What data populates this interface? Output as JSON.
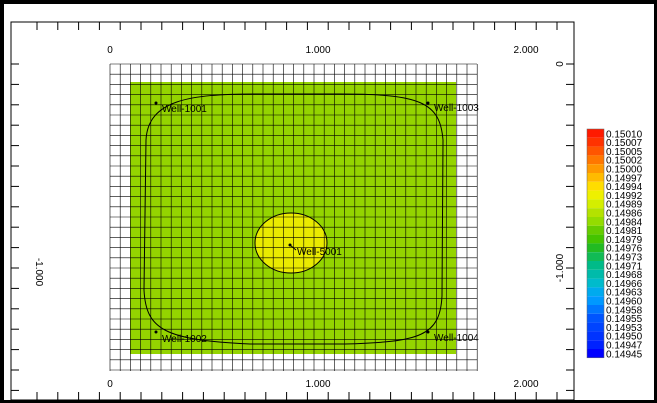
{
  "axes": {
    "x_ticks": [
      "0",
      "1.000",
      "2.000"
    ],
    "y_ticks": [
      "0",
      "-1.000"
    ]
  },
  "wells": [
    {
      "name": "Well-1001"
    },
    {
      "name": "Well-1003"
    },
    {
      "name": "Well-5001"
    },
    {
      "name": "Well-1002"
    },
    {
      "name": "Well-1004"
    }
  ],
  "legend": {
    "entries": [
      {
        "label": "0.15010",
        "color": "#ff1a00"
      },
      {
        "label": "0.15007",
        "color": "#ff3300"
      },
      {
        "label": "0.15005",
        "color": "#ff5500"
      },
      {
        "label": "0.15002",
        "color": "#ff7700"
      },
      {
        "label": "0.15000",
        "color": "#ff9900"
      },
      {
        "label": "0.14997",
        "color": "#ffbb00"
      },
      {
        "label": "0.14994",
        "color": "#ffdd00"
      },
      {
        "label": "0.14992",
        "color": "#eef000"
      },
      {
        "label": "0.14989",
        "color": "#d4ee00"
      },
      {
        "label": "0.14986",
        "color": "#b4e200"
      },
      {
        "label": "0.14984",
        "color": "#94dc00"
      },
      {
        "label": "0.14981",
        "color": "#66cc00"
      },
      {
        "label": "0.14979",
        "color": "#44c400"
      },
      {
        "label": "0.14976",
        "color": "#22bb22"
      },
      {
        "label": "0.14973",
        "color": "#11bb55"
      },
      {
        "label": "0.14971",
        "color": "#00bb88"
      },
      {
        "label": "0.14968",
        "color": "#00bbaa"
      },
      {
        "label": "0.14966",
        "color": "#00bbcc"
      },
      {
        "label": "0.14963",
        "color": "#00aaee"
      },
      {
        "label": "0.14960",
        "color": "#0099ff"
      },
      {
        "label": "0.14958",
        "color": "#0077ff"
      },
      {
        "label": "0.14955",
        "color": "#0055ff"
      },
      {
        "label": "0.14953",
        "color": "#0044ff"
      },
      {
        "label": "0.14950",
        "color": "#0033ff"
      },
      {
        "label": "0.14947",
        "color": "#0022ff"
      },
      {
        "label": "0.14945",
        "color": "#0000ff"
      }
    ]
  },
  "colors": {
    "field": "#94d400",
    "center_zone": "#eaea00",
    "grid": "#000000"
  }
}
